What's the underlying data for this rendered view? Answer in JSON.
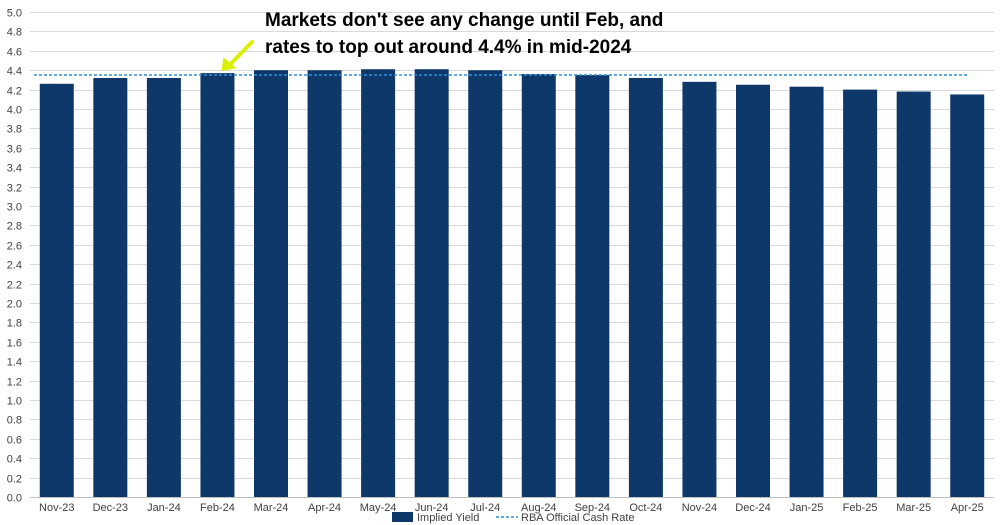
{
  "chart_data": {
    "type": "bar",
    "categories": [
      "Nov-23",
      "Dec-23",
      "Jan-24",
      "Feb-24",
      "Mar-24",
      "Apr-24",
      "May-24",
      "Jun-24",
      "Jul-24",
      "Aug-24",
      "Sep-24",
      "Oct-24",
      "Nov-24",
      "Dec-24",
      "Jan-25",
      "Feb-25",
      "Mar-25",
      "Apr-25"
    ],
    "series": [
      {
        "name": "Implied Yield",
        "type": "bar",
        "color": "#0e3869",
        "values": [
          4.26,
          4.32,
          4.32,
          4.37,
          4.4,
          4.4,
          4.41,
          4.41,
          4.4,
          4.36,
          4.35,
          4.32,
          4.28,
          4.25,
          4.23,
          4.2,
          4.18,
          4.15
        ]
      },
      {
        "name": "RBA Official Cash Rate",
        "type": "line",
        "style": "dashed",
        "color": "#2e8fd8",
        "value": 4.35
      }
    ],
    "ylim": [
      0.0,
      5.0
    ],
    "yticks": [
      "0.0",
      "0.2",
      "0.4",
      "0.6",
      "0.8",
      "1.0",
      "1.2",
      "1.4",
      "1.6",
      "1.8",
      "2.0",
      "2.2",
      "2.4",
      "2.6",
      "2.8",
      "3.0",
      "3.2",
      "3.4",
      "3.6",
      "3.8",
      "4.0",
      "4.2",
      "4.4",
      "4.6",
      "4.8",
      "5.0"
    ],
    "grid": true,
    "legend_position": "bottom-center",
    "annotation": {
      "lines": [
        "Markets don't see any change until Feb, and",
        "rates to top out around 4.4% in mid-2024"
      ],
      "arrow_color": "#dbf005",
      "points_to": "Feb-24"
    },
    "title": "",
    "xlabel": "",
    "ylabel": ""
  }
}
